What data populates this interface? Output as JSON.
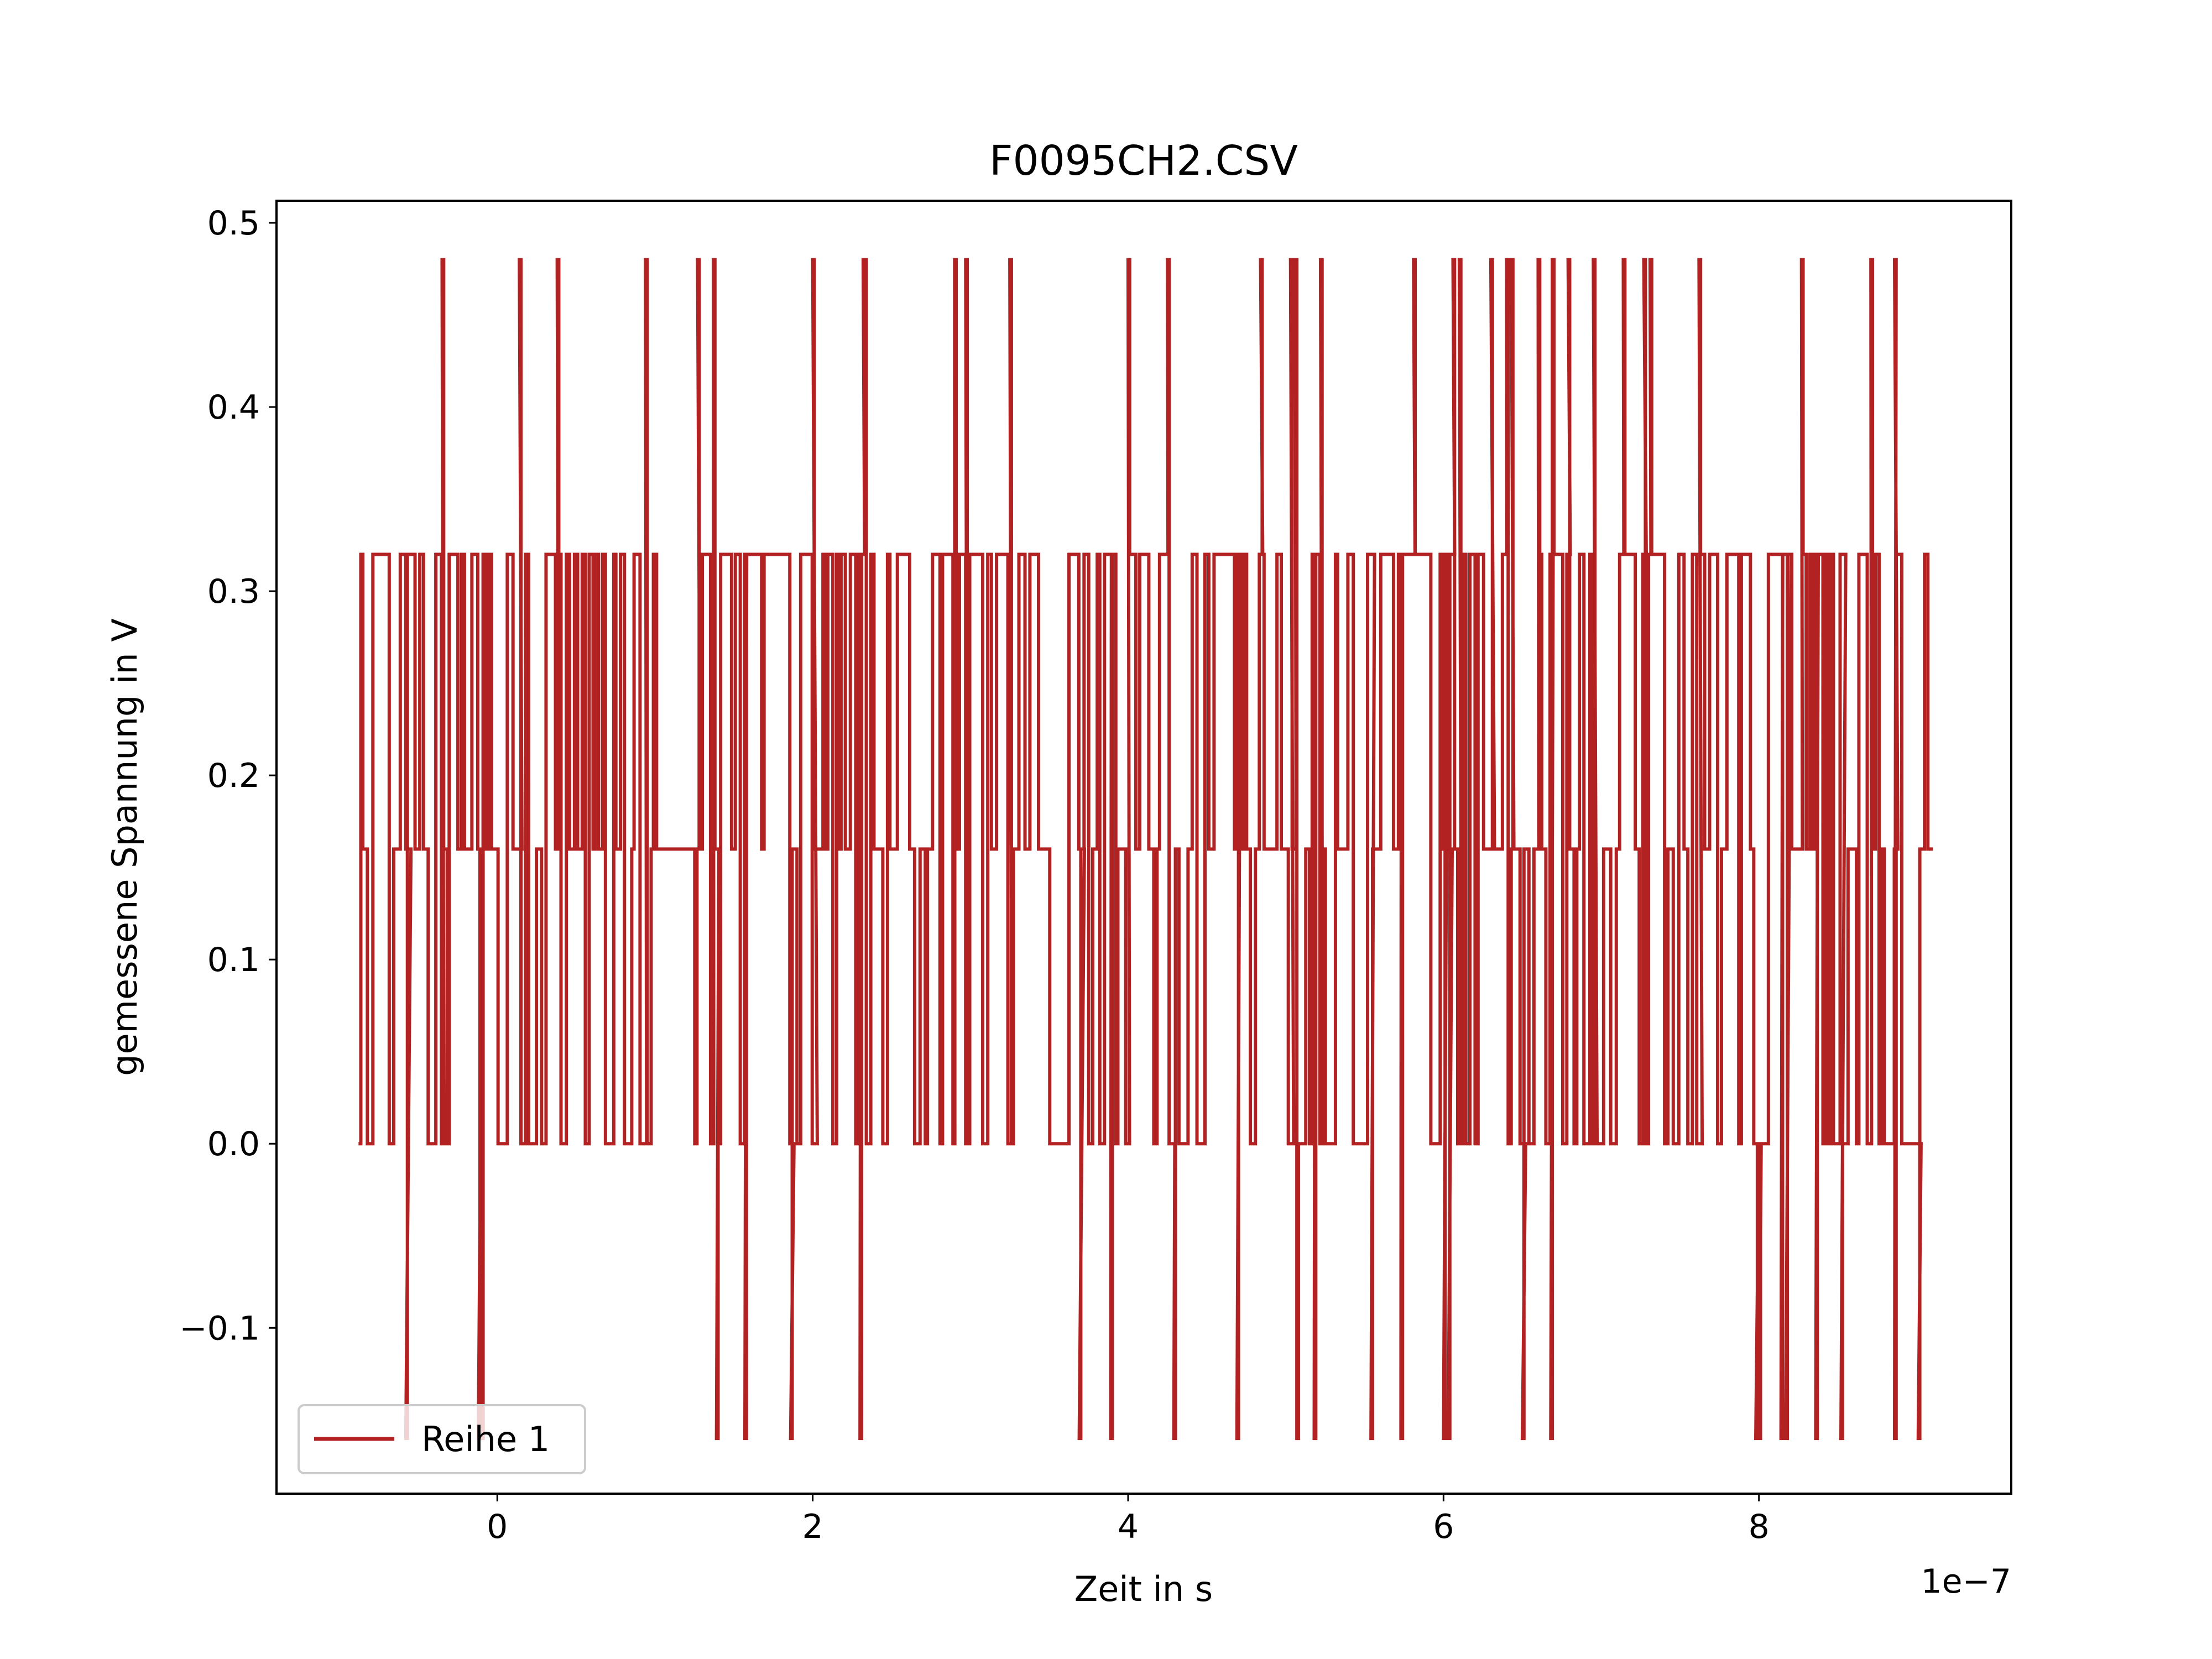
{
  "chart_data": {
    "type": "line",
    "title": "F0095CH2.CSV",
    "xlabel": "Zeit in s",
    "ylabel": "gemessene Spannung in V",
    "x_offset_label": "1e−7",
    "x_scale_exponent": -7,
    "xlim": [
      -1.4e-07,
      9.6e-07
    ],
    "ylim": [
      -0.19,
      0.512
    ],
    "x_ticks": [
      0,
      2e-07,
      4e-07,
      6e-07,
      8e-07
    ],
    "x_tick_labels": [
      "0",
      "2",
      "4",
      "6",
      "8"
    ],
    "y_ticks": [
      -0.1,
      0.0,
      0.1,
      0.2,
      0.3,
      0.4,
      0.5
    ],
    "y_tick_labels": [
      "−0.1",
      "0.0",
      "0.1",
      "0.2",
      "0.3",
      "0.4",
      "0.5"
    ],
    "grid": false,
    "legend_position": "lower-left",
    "series": [
      {
        "name": "Reihe 1",
        "color": "#b22222",
        "levels": [
          -0.16,
          0.0,
          0.16,
          0.32,
          0.48
        ],
        "x_start": -8.8e-08,
        "x_end": 9.1e-07,
        "spike_times_048": [
          -3.5e-08,
          1.4e-08,
          3.8e-08,
          9.4e-08,
          1.27e-07,
          1.37e-07,
          2e-07,
          2.32e-07,
          2.33e-07,
          2.9e-07,
          2.97e-07,
          3.25e-07,
          4e-07,
          4.25e-07,
          4.84e-07,
          5.03e-07,
          5.06e-07,
          5.22e-07,
          5.81e-07,
          6.06e-07,
          6.1e-07,
          6.3e-07,
          6.4e-07,
          6.43e-07,
          6.6e-07,
          6.69e-07,
          6.79e-07,
          6.95e-07,
          7.14e-07,
          7.27e-07,
          7.31e-07,
          7.62e-07,
          8.27e-07,
          8.71e-07,
          8.86e-07
        ],
        "dip_times_neg016": [
          -5.8e-08,
          -1.2e-08,
          -1e-08,
          1.39e-07,
          1.57e-07,
          1.86e-07,
          2.3e-07,
          3.69e-07,
          3.89e-07,
          4.29e-07,
          4.69e-07,
          5.07e-07,
          5.18e-07,
          5.54e-07,
          5.73e-07,
          6e-07,
          6.03e-07,
          6.5e-07,
          6.68e-07,
          7.98e-07,
          8e-07,
          8.14e-07,
          8.17e-07,
          8.36e-07,
          8.52e-07,
          8.86e-07,
          9.01e-07
        ],
        "generator_seed": 95
      }
    ]
  }
}
